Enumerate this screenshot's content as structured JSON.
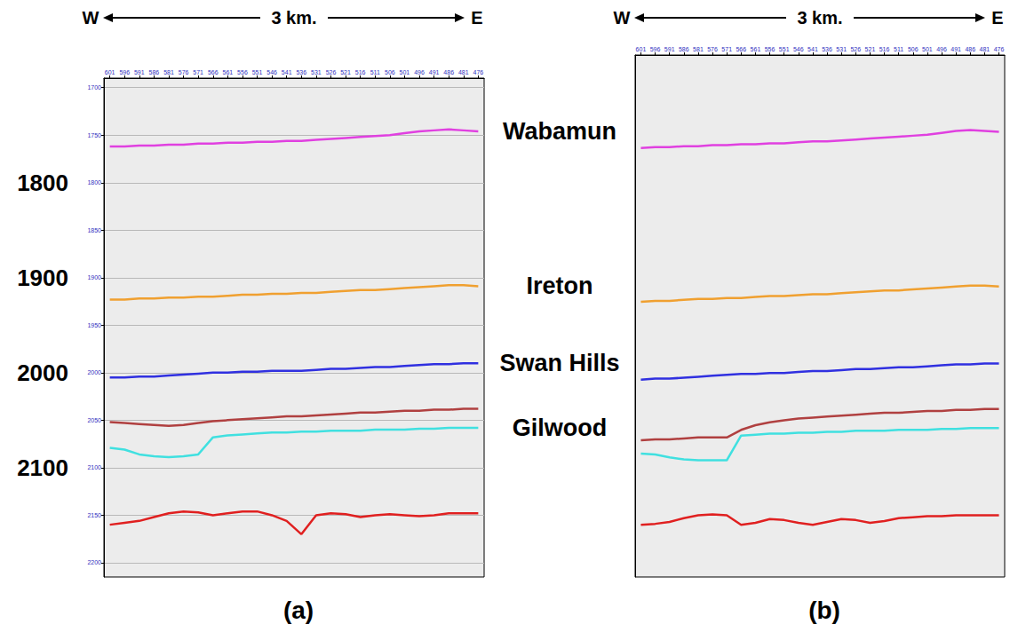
{
  "chart_data": [
    {
      "type": "line",
      "title": "(a)",
      "x": [
        601,
        596,
        591,
        586,
        581,
        576,
        571,
        566,
        561,
        556,
        551,
        546,
        541,
        536,
        531,
        526,
        521,
        516,
        511,
        506,
        501,
        496,
        491,
        486,
        481,
        476
      ],
      "xlim": [
        603,
        474
      ],
      "xticks": [
        601,
        596,
        591,
        586,
        581,
        576,
        571,
        566,
        561,
        556,
        551,
        546,
        541,
        536,
        531,
        526,
        521,
        516,
        511,
        506,
        501,
        496,
        491,
        486,
        481,
        476
      ],
      "ylim": [
        2215,
        1690
      ],
      "yticks": [
        1700,
        1750,
        1800,
        1850,
        1900,
        1950,
        2000,
        2050,
        2100,
        2150,
        2200
      ],
      "time_labels": [
        1800,
        1900,
        2000,
        2100
      ],
      "grid": true,
      "series": [
        {
          "name": "Wabamun",
          "color": "#e040e0",
          "values": [
            1762,
            1762,
            1761,
            1761,
            1760,
            1760,
            1759,
            1759,
            1758,
            1758,
            1757,
            1757,
            1756,
            1756,
            1755,
            1754,
            1753,
            1752,
            1751,
            1750,
            1748,
            1746,
            1745,
            1744,
            1745,
            1746
          ]
        },
        {
          "name": "Ireton",
          "color": "#f0a030",
          "values": [
            1923,
            1923,
            1922,
            1922,
            1921,
            1921,
            1920,
            1920,
            1919,
            1918,
            1918,
            1917,
            1917,
            1916,
            1916,
            1915,
            1914,
            1913,
            1913,
            1912,
            1911,
            1910,
            1909,
            1908,
            1908,
            1909
          ]
        },
        {
          "name": "Swan Hills",
          "color": "#3030e0",
          "values": [
            2005,
            2005,
            2004,
            2004,
            2003,
            2002,
            2001,
            2000,
            2000,
            1999,
            1999,
            1998,
            1998,
            1998,
            1997,
            1996,
            1996,
            1995,
            1994,
            1994,
            1993,
            1992,
            1991,
            1991,
            1990,
            1990
          ]
        },
        {
          "color": "#b04040",
          "values": [
            2052,
            2053,
            2054,
            2055,
            2056,
            2055,
            2053,
            2051,
            2050,
            2049,
            2048,
            2047,
            2046,
            2046,
            2045,
            2044,
            2043,
            2042,
            2042,
            2041,
            2040,
            2040,
            2039,
            2039,
            2038,
            2038
          ]
        },
        {
          "name": "Gilwood",
          "color": "#40e0e0",
          "values": [
            2079,
            2081,
            2086,
            2088,
            2089,
            2088,
            2086,
            2068,
            2066,
            2065,
            2064,
            2063,
            2063,
            2062,
            2062,
            2061,
            2061,
            2061,
            2060,
            2060,
            2060,
            2059,
            2059,
            2058,
            2058,
            2058
          ]
        },
        {
          "color": "#e02020",
          "values": [
            2160,
            2158,
            2156,
            2152,
            2148,
            2146,
            2147,
            2150,
            2148,
            2146,
            2146,
            2150,
            2156,
            2170,
            2150,
            2148,
            2149,
            2152,
            2150,
            2149,
            2150,
            2151,
            2150,
            2148,
            2148,
            2148
          ]
        }
      ]
    },
    {
      "type": "line",
      "title": "(b)",
      "x": [
        601,
        596,
        591,
        586,
        581,
        576,
        571,
        566,
        561,
        556,
        551,
        546,
        541,
        536,
        531,
        526,
        521,
        516,
        511,
        506,
        501,
        496,
        491,
        486,
        481,
        476
      ],
      "xlim": [
        603,
        474
      ],
      "xticks": [
        601,
        596,
        591,
        586,
        581,
        576,
        571,
        566,
        561,
        556,
        551,
        546,
        541,
        536,
        531,
        526,
        521,
        516,
        511,
        506,
        501,
        496,
        491,
        486,
        481,
        476
      ],
      "ylim": [
        2215,
        1665
      ],
      "tick_labels": "x",
      "grid": false,
      "series": [
        {
          "color": "#e040e0",
          "values": [
            1763,
            1762,
            1762,
            1761,
            1761,
            1760,
            1760,
            1759,
            1759,
            1758,
            1758,
            1757,
            1756,
            1756,
            1755,
            1754,
            1753,
            1752,
            1751,
            1750,
            1749,
            1747,
            1745,
            1744,
            1745,
            1746
          ]
        },
        {
          "color": "#f0a030",
          "values": [
            1925,
            1924,
            1924,
            1923,
            1922,
            1922,
            1921,
            1921,
            1920,
            1919,
            1919,
            1918,
            1917,
            1917,
            1916,
            1915,
            1914,
            1913,
            1913,
            1912,
            1911,
            1910,
            1909,
            1908,
            1908,
            1909
          ]
        },
        {
          "color": "#3030e0",
          "values": [
            2007,
            2006,
            2006,
            2005,
            2004,
            2003,
            2002,
            2001,
            2001,
            2000,
            2000,
            1999,
            1998,
            1998,
            1997,
            1996,
            1996,
            1995,
            1994,
            1994,
            1993,
            1992,
            1991,
            1991,
            1990,
            1990
          ]
        },
        {
          "color": "#b04040",
          "values": [
            2071,
            2070,
            2070,
            2069,
            2068,
            2068,
            2068,
            2060,
            2055,
            2052,
            2050,
            2048,
            2047,
            2046,
            2045,
            2044,
            2043,
            2042,
            2042,
            2041,
            2040,
            2040,
            2039,
            2039,
            2038,
            2038
          ]
        },
        {
          "color": "#40e0e0",
          "values": [
            2085,
            2086,
            2089,
            2091,
            2092,
            2092,
            2092,
            2066,
            2065,
            2064,
            2064,
            2063,
            2063,
            2062,
            2062,
            2061,
            2061,
            2061,
            2060,
            2060,
            2060,
            2059,
            2059,
            2058,
            2058,
            2058
          ]
        },
        {
          "color": "#e02020",
          "values": [
            2160,
            2159,
            2157,
            2153,
            2150,
            2149,
            2150,
            2160,
            2158,
            2154,
            2155,
            2158,
            2160,
            2157,
            2154,
            2155,
            2158,
            2156,
            2153,
            2152,
            2151,
            2151,
            2150,
            2150,
            2150,
            2150
          ]
        }
      ]
    }
  ],
  "header": {
    "left": "W",
    "center": "3 km.",
    "right": "E"
  }
}
